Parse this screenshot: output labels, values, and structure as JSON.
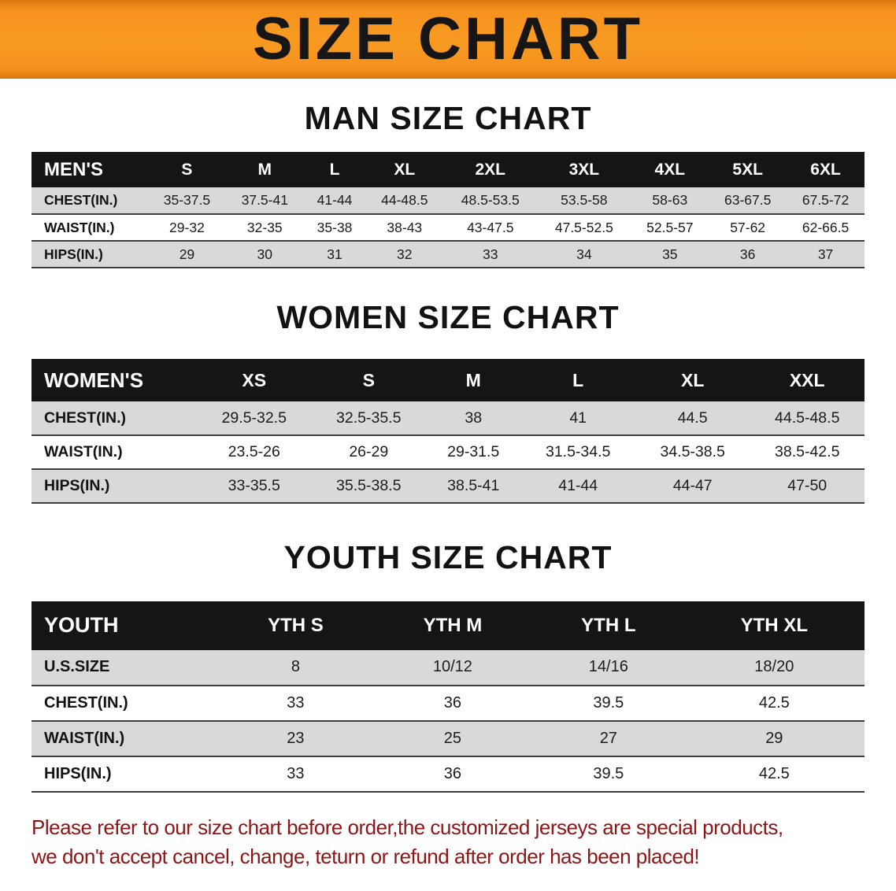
{
  "banner": {
    "title": "SIZE CHART"
  },
  "chart_data": [
    {
      "type": "table",
      "id": "men",
      "title": "MAN SIZE CHART",
      "columns": [
        "MEN'S",
        "S",
        "M",
        "L",
        "XL",
        "2XL",
        "3XL",
        "4XL",
        "5XL",
        "6XL"
      ],
      "rows": [
        {
          "label": "CHEST(IN.)",
          "values": [
            "35-37.5",
            "37.5-41",
            "41-44",
            "44-48.5",
            "48.5-53.5",
            "53.5-58",
            "58-63",
            "63-67.5",
            "67.5-72"
          ]
        },
        {
          "label": "WAIST(IN.)",
          "values": [
            "29-32",
            "32-35",
            "35-38",
            "38-43",
            "43-47.5",
            "47.5-52.5",
            "52.5-57",
            "57-62",
            "62-66.5"
          ]
        },
        {
          "label": "HIPS(IN.)",
          "values": [
            "29",
            "30",
            "31",
            "32",
            "33",
            "34",
            "35",
            "36",
            "37"
          ]
        }
      ]
    },
    {
      "type": "table",
      "id": "women",
      "title": "WOMEN SIZE CHART",
      "columns": [
        "WOMEN'S",
        "XS",
        "S",
        "M",
        "L",
        "XL",
        "XXL"
      ],
      "rows": [
        {
          "label": "CHEST(IN.)",
          "values": [
            "29.5-32.5",
            "32.5-35.5",
            "38",
            "41",
            "44.5",
            "44.5-48.5"
          ]
        },
        {
          "label": "WAIST(IN.)",
          "values": [
            "23.5-26",
            "26-29",
            "29-31.5",
            "31.5-34.5",
            "34.5-38.5",
            "38.5-42.5"
          ]
        },
        {
          "label": "HIPS(IN.)",
          "values": [
            "33-35.5",
            "35.5-38.5",
            "38.5-41",
            "41-44",
            "44-47",
            "47-50"
          ]
        }
      ]
    },
    {
      "type": "table",
      "id": "youth",
      "title": "YOUTH SIZE CHART",
      "columns": [
        "YOUTH",
        "YTH S",
        "YTH M",
        "YTH L",
        "YTH XL"
      ],
      "rows": [
        {
          "label": "U.S.SIZE",
          "values": [
            "8",
            "10/12",
            "14/16",
            "18/20"
          ]
        },
        {
          "label": "CHEST(IN.)",
          "values": [
            "33",
            "36",
            "39.5",
            "42.5"
          ]
        },
        {
          "label": "WAIST(IN.)",
          "values": [
            "23",
            "25",
            "27",
            "29"
          ]
        },
        {
          "label": "HIPS(IN.)",
          "values": [
            "33",
            "36",
            "39.5",
            "42.5"
          ]
        }
      ]
    }
  ],
  "footer": {
    "lines": [
      "Please refer to our size chart before order,the customized jerseys are special products,",
      "we don't accept cancel, change, teturn or refund after order has been placed!"
    ]
  },
  "colors": {
    "banner_orange": "#f6921e",
    "table_header_black": "#151515",
    "shaded_row_gray": "#d9d9d9",
    "notice_red": "#8c1616"
  }
}
